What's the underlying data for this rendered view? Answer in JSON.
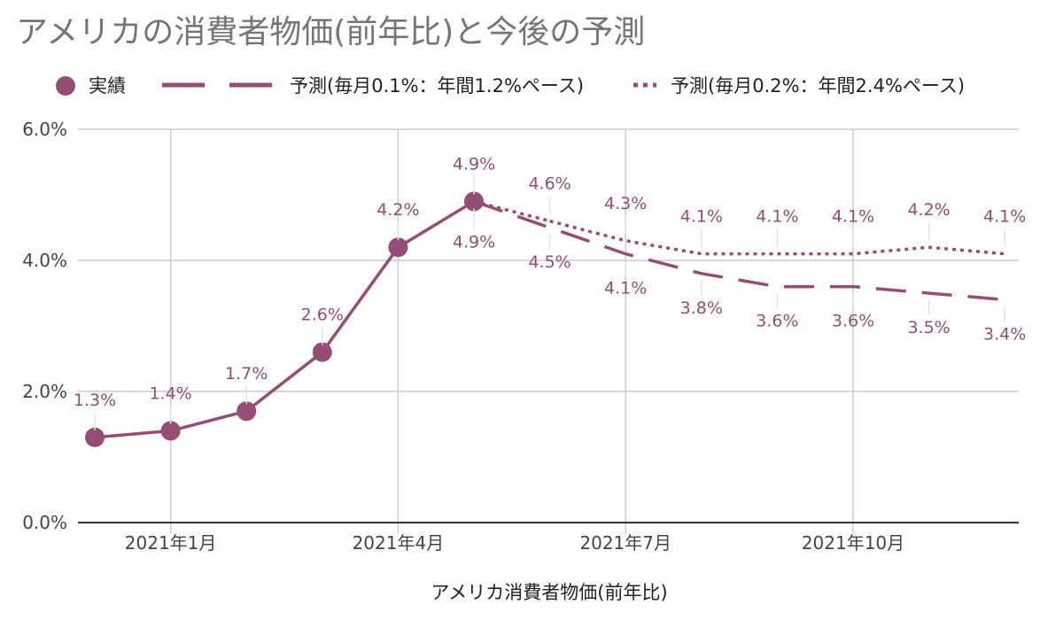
{
  "colors": {
    "series": "#944d74",
    "grid": "#cccccc",
    "axis": "#333333",
    "title": "#757575"
  },
  "chart_data": {
    "type": "line",
    "title": "アメリカの消費者物価(前年比)と今後の予測",
    "xlabel": "アメリカ消費者物価(前年比)",
    "ylabel": "",
    "ylim": [
      0,
      6
    ],
    "y_ticks": [
      "0.0%",
      "2.0%",
      "4.0%",
      "6.0%"
    ],
    "x_tick_labels": [
      {
        "month": "2021-01",
        "label": "2021年1月"
      },
      {
        "month": "2021-04",
        "label": "2021年4月"
      },
      {
        "month": "2021-07",
        "label": "2021年7月"
      },
      {
        "month": "2021-10",
        "label": "2021年10月"
      }
    ],
    "grid": true,
    "legend_position": "top",
    "series": [
      {
        "name": "実績",
        "style": "solid-with-markers",
        "points": [
          {
            "month": "2020-12",
            "value": 1.3,
            "label": "1.3%"
          },
          {
            "month": "2021-01",
            "value": 1.4,
            "label": "1.4%"
          },
          {
            "month": "2021-02",
            "value": 1.7,
            "label": "1.7%"
          },
          {
            "month": "2021-03",
            "value": 2.6,
            "label": "2.6%"
          },
          {
            "month": "2021-04",
            "value": 4.2,
            "label": "4.2%"
          },
          {
            "month": "2021-05",
            "value": 4.9,
            "label": "4.9%"
          }
        ]
      },
      {
        "name": "予測(毎月0.1%：年間1.2%ペース)",
        "style": "dashed",
        "points": [
          {
            "month": "2021-05",
            "value": 4.9,
            "label": "4.9%"
          },
          {
            "month": "2021-06",
            "value": 4.5,
            "label": "4.5%"
          },
          {
            "month": "2021-07",
            "value": 4.1,
            "label": "4.1%"
          },
          {
            "month": "2021-08",
            "value": 3.8,
            "label": "3.8%"
          },
          {
            "month": "2021-09",
            "value": 3.6,
            "label": "3.6%"
          },
          {
            "month": "2021-10",
            "value": 3.6,
            "label": "3.6%"
          },
          {
            "month": "2021-11",
            "value": 3.5,
            "label": "3.5%"
          },
          {
            "month": "2021-12",
            "value": 3.4,
            "label": "3.4%"
          }
        ]
      },
      {
        "name": "予測(毎月0.2%：年間2.4%ペース)",
        "style": "dotted",
        "points": [
          {
            "month": "2021-06",
            "value": 4.6,
            "label": "4.6%"
          },
          {
            "month": "2021-07",
            "value": 4.3,
            "label": "4.3%"
          },
          {
            "month": "2021-08",
            "value": 4.1,
            "label": "4.1%"
          },
          {
            "month": "2021-09",
            "value": 4.1,
            "label": "4.1%"
          },
          {
            "month": "2021-10",
            "value": 4.1,
            "label": "4.1%"
          },
          {
            "month": "2021-11",
            "value": 4.2,
            "label": "4.2%"
          },
          {
            "month": "2021-12",
            "value": 4.1,
            "label": "4.1%"
          }
        ]
      }
    ]
  }
}
